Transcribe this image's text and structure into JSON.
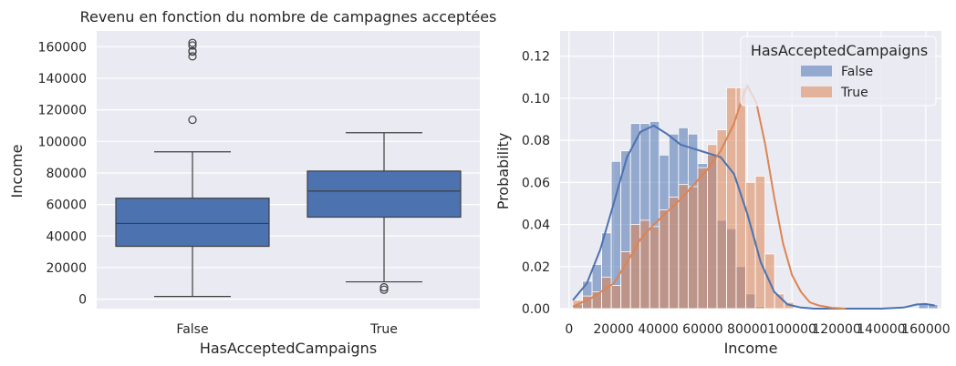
{
  "colors": {
    "background": "#eaeaf2",
    "grid": "#ffffff",
    "false": "#4c72b0",
    "true": "#dd8452",
    "overlap": "#9d95b1"
  },
  "chart_data": [
    {
      "type": "box",
      "title": "Revenu en fonction du nombre de campagnes acceptées",
      "xlabel": "HasAcceptedCampaigns",
      "ylabel": "Income",
      "categories": [
        "False",
        "True"
      ],
      "ylim": [
        -6000,
        170000
      ],
      "yticks": [
        0,
        20000,
        40000,
        60000,
        80000,
        100000,
        120000,
        140000,
        160000
      ],
      "ytick_labels": [
        "0",
        "20000",
        "40000",
        "60000",
        "80000",
        "100000",
        "120000",
        "140000",
        "160000"
      ],
      "grid": true,
      "boxes": [
        {
          "category": "False",
          "whisker_low": 1730,
          "q1": 33500,
          "median": 48000,
          "q3": 64000,
          "whisker_high": 93400,
          "outliers": [
            113700,
            153900,
            156900,
            157200,
            160800,
            162400
          ]
        },
        {
          "category": "True",
          "whisker_low": 11000,
          "q1": 52000,
          "median": 68500,
          "q3": 81200,
          "whisker_high": 105500,
          "outliers": [
            6000,
            7500
          ]
        }
      ]
    },
    {
      "type": "histogram",
      "xlabel": "Income",
      "ylabel": "Probability",
      "xlim": [
        -4000,
        167000
      ],
      "ylim": [
        0,
        0.132
      ],
      "xticks": [
        0,
        20000,
        40000,
        60000,
        80000,
        100000,
        120000,
        140000,
        160000
      ],
      "xtick_labels": [
        "0",
        "20000",
        "40000",
        "60000",
        "80000",
        "100000",
        "120000",
        "140000",
        "160000"
      ],
      "yticks": [
        0,
        0.02,
        0.04,
        0.06,
        0.08,
        0.1,
        0.12
      ],
      "ytick_labels": [
        "0.00",
        "0.02",
        "0.04",
        "0.06",
        "0.08",
        "0.10",
        "0.12"
      ],
      "grid": true,
      "legend": {
        "title": "HasAcceptedCampaigns",
        "placement": "top-right"
      },
      "bin_edges": [
        1730,
        6038,
        10346,
        14654,
        18962,
        23270,
        27578,
        31886,
        36194,
        40502,
        44810,
        49118,
        53426,
        57734,
        62042,
        66350,
        70658,
        74966,
        79274,
        83582,
        87890,
        92198,
        96506,
        100814,
        105122,
        109430,
        113738,
        118046,
        122354,
        126662,
        130970,
        135278,
        139586,
        143894,
        148202,
        152510,
        156818,
        161126,
        165434
      ],
      "series": [
        {
          "name": "False",
          "values": [
            0.002,
            0.013,
            0.021,
            0.036,
            0.07,
            0.075,
            0.088,
            0.088,
            0.089,
            0.073,
            0.083,
            0.086,
            0.083,
            0.069,
            0.073,
            0.042,
            0.038,
            0.02,
            0.007,
            0.001,
            0,
            0,
            0,
            0,
            0,
            0,
            0,
            0,
            0,
            0,
            0,
            0,
            0,
            0,
            0,
            0,
            0.002,
            0.002
          ]
        },
        {
          "name": "True",
          "values": [
            0.004,
            0.006,
            0.008,
            0.015,
            0.011,
            0.027,
            0.04,
            0.042,
            0.039,
            0.047,
            0.053,
            0.059,
            0.058,
            0.067,
            0.078,
            0.085,
            0.105,
            0.105,
            0.06,
            0.063,
            0.026,
            0.007,
            0.003,
            0,
            0,
            0,
            0,
            0,
            0,
            0,
            0,
            0,
            0,
            0,
            0,
            0,
            0,
            0
          ]
        }
      ],
      "kde": [
        {
          "name": "False",
          "x": [
            1730,
            8000,
            14000,
            20000,
            26000,
            32000,
            38000,
            44000,
            50000,
            56000,
            62000,
            68000,
            74000,
            80000,
            86000,
            92000,
            98000,
            104000,
            110000,
            140000,
            150000,
            156000,
            160000,
            164000
          ],
          "y": [
            0.004,
            0.012,
            0.028,
            0.05,
            0.072,
            0.084,
            0.087,
            0.083,
            0.078,
            0.076,
            0.074,
            0.072,
            0.064,
            0.045,
            0.022,
            0.008,
            0.002,
            0.0005,
            0,
            0,
            0.0005,
            0.002,
            0.0022,
            0.0015
          ]
        },
        {
          "name": "True",
          "x": [
            1730,
            10000,
            20000,
            26000,
            32000,
            38000,
            44000,
            50000,
            56000,
            62000,
            68000,
            74000,
            78000,
            80000,
            84000,
            88000,
            92000,
            96000,
            100000,
            104000,
            108000,
            112000,
            118000,
            124000
          ],
          "y": [
            0.001,
            0.005,
            0.012,
            0.022,
            0.033,
            0.04,
            0.046,
            0.052,
            0.059,
            0.066,
            0.075,
            0.088,
            0.101,
            0.106,
            0.098,
            0.078,
            0.053,
            0.031,
            0.016,
            0.008,
            0.003,
            0.0015,
            0.0004,
            0
          ]
        }
      ]
    }
  ]
}
